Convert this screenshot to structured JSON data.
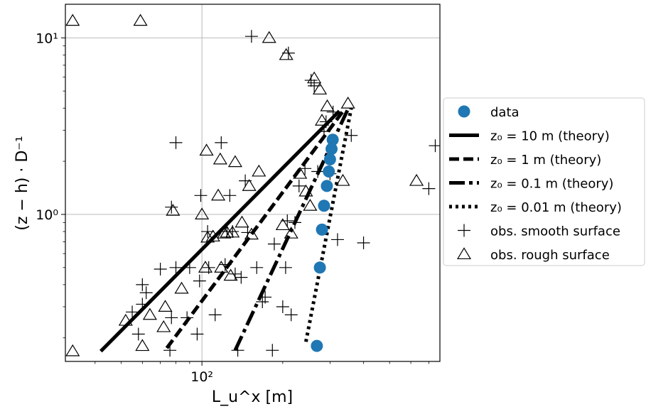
{
  "chart_data": {
    "type": "scatter",
    "x_label": "L_u^x [m]",
    "y_label": "(z − h) · D⁻¹",
    "x_scale": "log",
    "y_scale": "log",
    "xlim": [
      31,
      770
    ],
    "ylim": [
      0.147,
      15.5
    ],
    "x_tick_labels": [
      {
        "value": 100,
        "label": "10²"
      }
    ],
    "y_tick_labels": [
      {
        "value": 1,
        "label": "10⁰"
      },
      {
        "value": 10,
        "label": "10¹"
      }
    ],
    "grid": true,
    "legend_position": "right",
    "series": [
      {
        "name": "data",
        "kind": "points",
        "marker": "circle",
        "color": "#1f77b4",
        "points": [
          [
            268,
            0.18
          ],
          [
            275,
            0.5
          ],
          [
            280,
            0.82
          ],
          [
            285,
            1.12
          ],
          [
            292,
            1.45
          ],
          [
            297,
            1.75
          ],
          [
            300,
            2.05
          ],
          [
            304,
            2.35
          ],
          [
            307,
            2.65
          ]
        ]
      },
      {
        "name": "z₀ = 10 m (theory)",
        "kind": "line",
        "dash": "solid",
        "points": [
          [
            42,
            0.168
          ],
          [
            325,
            3.85
          ]
        ]
      },
      {
        "name": "z₀ = 1 m (theory)",
        "kind": "line",
        "dash": "dashed",
        "points": [
          [
            74,
            0.175
          ],
          [
            340,
            3.95
          ]
        ]
      },
      {
        "name": "z₀ = 0.1 m (theory)",
        "kind": "line",
        "dash": "dashdot",
        "points": [
          [
            133,
            0.17
          ],
          [
            350,
            3.95
          ]
        ]
      },
      {
        "name": "z₀ = 0.01 m (theory)",
        "kind": "line",
        "dash": "dotted",
        "points": [
          [
            244,
            0.19
          ],
          [
            360,
            4.0
          ]
        ]
      },
      {
        "name": "obs. smooth surface",
        "kind": "points",
        "marker": "plus",
        "points": [
          [
            55,
            0.28
          ],
          [
            60,
            0.31
          ],
          [
            62,
            0.36
          ],
          [
            58,
            0.21
          ],
          [
            60,
            0.4
          ],
          [
            70,
            0.49
          ],
          [
            76,
            0.17
          ],
          [
            77,
            0.26
          ],
          [
            77,
            1.1
          ],
          [
            80,
            2.55
          ],
          [
            80,
            0.5
          ],
          [
            88,
            0.26
          ],
          [
            90,
            0.5
          ],
          [
            96,
            0.21
          ],
          [
            98,
            0.42
          ],
          [
            99,
            1.28
          ],
          [
            105,
            0.8
          ],
          [
            106,
            0.5
          ],
          [
            112,
            0.27
          ],
          [
            118,
            2.55
          ],
          [
            122,
            0.52
          ],
          [
            124,
            0.8
          ],
          [
            127,
            1.28
          ],
          [
            130,
            0.8
          ],
          [
            133,
            0.46
          ],
          [
            136,
            0.17
          ],
          [
            140,
            0.44
          ],
          [
            145,
            1.55
          ],
          [
            148,
            0.79
          ],
          [
            153,
            10.2
          ],
          [
            160,
            0.5
          ],
          [
            168,
            0.32
          ],
          [
            172,
            0.34
          ],
          [
            183,
            0.17
          ],
          [
            186,
            0.68
          ],
          [
            200,
            0.3
          ],
          [
            205,
            0.5
          ],
          [
            208,
            0.92
          ],
          [
            210,
            8.2
          ],
          [
            215,
            0.27
          ],
          [
            222,
            0.9
          ],
          [
            230,
            1.45
          ],
          [
            242,
            1.82
          ],
          [
            255,
            5.75
          ],
          [
            262,
            5.35
          ],
          [
            270,
            1.75
          ],
          [
            285,
            2.95
          ],
          [
            290,
            3.35
          ],
          [
            300,
            1.7
          ],
          [
            308,
            3.8
          ],
          [
            320,
            0.72
          ],
          [
            360,
            2.8
          ],
          [
            400,
            0.69
          ],
          [
            700,
            1.4
          ],
          [
            740,
            2.45
          ]
        ]
      },
      {
        "name": "obs. rough surface",
        "kind": "points",
        "marker": "triangle",
        "points": [
          [
            33,
            12.5
          ],
          [
            33,
            0.168
          ],
          [
            52,
            0.25
          ],
          [
            59,
            12.5
          ],
          [
            60,
            0.18
          ],
          [
            64,
            0.27
          ],
          [
            72,
            0.23
          ],
          [
            73,
            0.3
          ],
          [
            78,
            1.05
          ],
          [
            84,
            0.38
          ],
          [
            100,
            1.0
          ],
          [
            103,
            0.5
          ],
          [
            105,
            0.74
          ],
          [
            104,
            2.3
          ],
          [
            110,
            0.75
          ],
          [
            115,
            1.28
          ],
          [
            117,
            2.05
          ],
          [
            118,
            0.5
          ],
          [
            121,
            0.78
          ],
          [
            124,
            0.79
          ],
          [
            128,
            0.45
          ],
          [
            130,
            0.79
          ],
          [
            133,
            1.98
          ],
          [
            141,
            0.9
          ],
          [
            150,
            1.45
          ],
          [
            153,
            0.77
          ],
          [
            163,
            1.75
          ],
          [
            178,
            10.0
          ],
          [
            200,
            0.87
          ],
          [
            206,
            8.0
          ],
          [
            215,
            0.78
          ],
          [
            232,
            1.7
          ],
          [
            244,
            1.35
          ],
          [
            253,
            1.12
          ],
          [
            262,
            5.9
          ],
          [
            275,
            5.1
          ],
          [
            280,
            3.4
          ],
          [
            293,
            4.1
          ],
          [
            335,
            1.55
          ],
          [
            350,
            4.25
          ],
          [
            630,
            1.55
          ]
        ]
      }
    ]
  }
}
